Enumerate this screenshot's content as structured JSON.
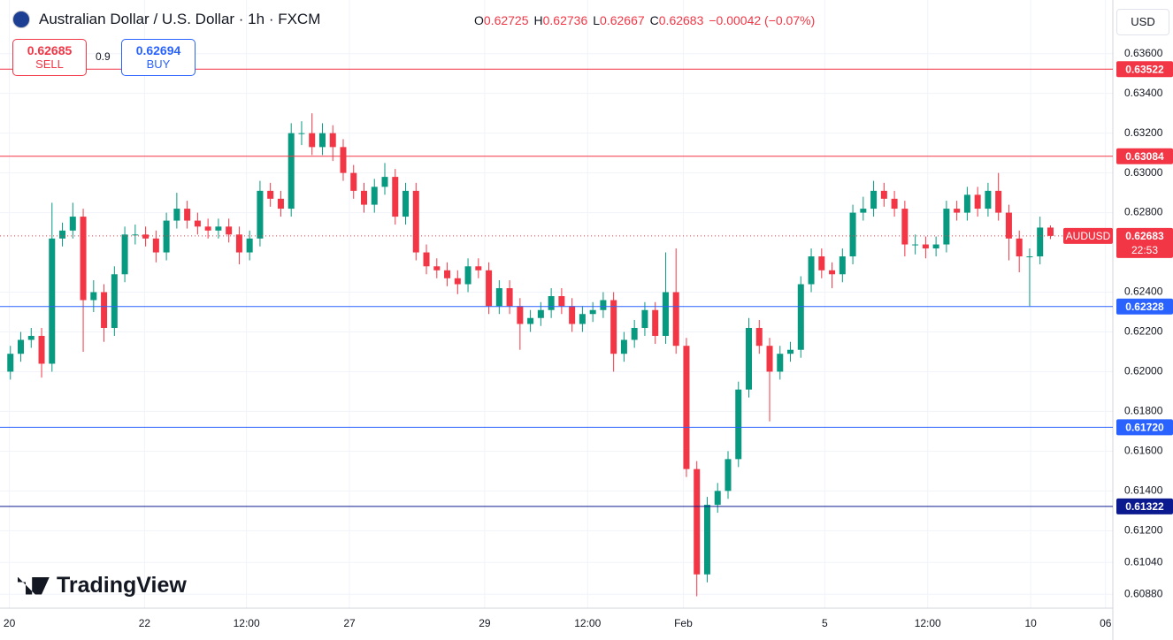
{
  "chart_data": {
    "type": "candlestick",
    "title": "Australian Dollar / U.S. Dollar · 1h · FXCM",
    "ohlc": [
      {
        "key": "O",
        "value": 0.62725
      },
      {
        "key": "H",
        "value": 0.62736
      },
      {
        "key": "L",
        "value": 0.62667
      },
      {
        "key": "C",
        "value": 0.62683
      }
    ],
    "change": "−0.00042 (−0.07%)",
    "sell": {
      "price": "0.62685",
      "label": "SELL"
    },
    "spread": "0.9",
    "buy": {
      "price": "0.62694",
      "label": "BUY"
    },
    "currency": "USD",
    "brand": "TradingView",
    "up_color": "#089981",
    "down_color": "#f23645",
    "grid": true,
    "ylim": [
      0.6081,
      0.6387
    ],
    "xlim": [
      -1,
      106
    ],
    "yticks": [
      {
        "value": 0.636,
        "label": "0.63600"
      },
      {
        "value": 0.634,
        "label": "0.63400"
      },
      {
        "value": 0.632,
        "label": "0.63200"
      },
      {
        "value": 0.63,
        "label": "0.63000"
      },
      {
        "value": 0.628,
        "label": "0.62800"
      },
      {
        "value": 0.624,
        "label": "0.62400"
      },
      {
        "value": 0.622,
        "label": "0.62200"
      },
      {
        "value": 0.62,
        "label": "0.62000"
      },
      {
        "value": 0.618,
        "label": "0.61800"
      },
      {
        "value": 0.616,
        "label": "0.61600"
      },
      {
        "value": 0.614,
        "label": "0.61400"
      },
      {
        "value": 0.612,
        "label": "0.61200"
      },
      {
        "value": 0.6104,
        "label": "0.61040"
      },
      {
        "value": 0.6088,
        "label": "0.60880"
      }
    ],
    "xticks": [
      {
        "value": -0.1,
        "label": "20"
      },
      {
        "value": 12.9,
        "label": "22"
      },
      {
        "value": 22.7,
        "label": "12:00"
      },
      {
        "value": 32.6,
        "label": "27"
      },
      {
        "value": 45.6,
        "label": "29"
      },
      {
        "value": 55.5,
        "label": "12:00"
      },
      {
        "value": 64.7,
        "label": "Feb"
      },
      {
        "value": 78.3,
        "label": "5"
      },
      {
        "value": 88.2,
        "label": "12:00"
      },
      {
        "value": 98.1,
        "label": "10"
      },
      {
        "value": 105.3,
        "label": "06"
      }
    ],
    "levels": [
      {
        "value": 0.63522,
        "label": "0.63522",
        "color": "#f23645"
      },
      {
        "value": 0.63084,
        "label": "0.63084",
        "color": "#f23645"
      },
      {
        "value": 0.62328,
        "label": "0.62328",
        "color": "#2962ff"
      },
      {
        "value": 0.6172,
        "label": "0.61720",
        "color": "#2962ff"
      },
      {
        "value": 0.61322,
        "label": "0.61322",
        "color": "#0c1a8f"
      }
    ],
    "last": {
      "value": 0.62683,
      "label": "0.62683",
      "symbol": "AUDUSD",
      "countdown": "22:53",
      "color": "#f23645"
    },
    "open": [
      0.62,
      0.6209,
      0.6216,
      0.6218,
      0.6204,
      0.6267,
      0.6271,
      0.6278,
      0.6236,
      0.624,
      0.6222,
      0.6249,
      0.6269,
      0.6269,
      0.6267,
      0.626,
      0.6276,
      0.6282,
      0.6276,
      0.6273,
      0.6271,
      0.6273,
      0.6269,
      0.626,
      0.6267,
      0.6291,
      0.6287,
      0.6282,
      0.632,
      0.632,
      0.6313,
      0.632,
      0.6313,
      0.63,
      0.6291,
      0.6284,
      0.6293,
      0.6298,
      0.6278,
      0.6291,
      0.626,
      0.6253,
      0.6251,
      0.6247,
      0.6244,
      0.6253,
      0.6251,
      0.6233,
      0.6242,
      0.6233,
      0.6224,
      0.6227,
      0.6231,
      0.6238,
      0.6233,
      0.6224,
      0.6229,
      0.6231,
      0.6236,
      0.6209,
      0.6216,
      0.6222,
      0.6231,
      0.6218,
      0.624,
      0.6213,
      0.6151,
      0.6098,
      0.6133,
      0.614,
      0.6156,
      0.6191,
      0.6222,
      0.6213,
      0.62,
      0.6209,
      0.6211,
      0.6244,
      0.6258,
      0.6251,
      0.6249,
      0.6258,
      0.628,
      0.6282,
      0.6291,
      0.6287,
      0.6282,
      0.6264,
      0.6264,
      0.6262,
      0.6264,
      0.6282,
      0.628,
      0.6289,
      0.6282,
      0.6291,
      0.628,
      0.6267,
      0.6258,
      0.6258,
      0.62725
    ],
    "high": [
      0.6213,
      0.622,
      0.6222,
      0.6222,
      0.6285,
      0.6275,
      0.6285,
      0.6282,
      0.6246,
      0.6244,
      0.6253,
      0.6273,
      0.6274,
      0.6273,
      0.6271,
      0.628,
      0.629,
      0.6286,
      0.628,
      0.6277,
      0.6277,
      0.6277,
      0.6273,
      0.6271,
      0.6296,
      0.6295,
      0.6291,
      0.6325,
      0.6326,
      0.633,
      0.6325,
      0.6324,
      0.6317,
      0.6304,
      0.6295,
      0.6297,
      0.6305,
      0.6302,
      0.6295,
      0.6295,
      0.6264,
      0.6257,
      0.6255,
      0.6251,
      0.6257,
      0.6257,
      0.6255,
      0.6246,
      0.6246,
      0.6237,
      0.6231,
      0.6235,
      0.6242,
      0.6242,
      0.6237,
      0.6233,
      0.6235,
      0.624,
      0.624,
      0.622,
      0.6226,
      0.6235,
      0.6235,
      0.626,
      0.6262,
      0.6217,
      0.6155,
      0.6137,
      0.6144,
      0.616,
      0.6195,
      0.6227,
      0.6226,
      0.6217,
      0.6213,
      0.6215,
      0.6248,
      0.6262,
      0.6262,
      0.6255,
      0.6262,
      0.6284,
      0.6288,
      0.6296,
      0.6295,
      0.6291,
      0.6286,
      0.6269,
      0.6268,
      0.6268,
      0.6286,
      0.6286,
      0.6293,
      0.6293,
      0.6295,
      0.63,
      0.6284,
      0.6271,
      0.6262,
      0.6278,
      0.62736
    ],
    "low": [
      0.6196,
      0.6205,
      0.6212,
      0.6197,
      0.62,
      0.6263,
      0.6267,
      0.621,
      0.623,
      0.6215,
      0.6218,
      0.6245,
      0.6264,
      0.6263,
      0.6255,
      0.6256,
      0.6272,
      0.6272,
      0.6269,
      0.6267,
      0.6267,
      0.6265,
      0.6254,
      0.6256,
      0.6263,
      0.6283,
      0.6278,
      0.6278,
      0.6314,
      0.6309,
      0.6309,
      0.6306,
      0.6296,
      0.6287,
      0.628,
      0.628,
      0.6289,
      0.6274,
      0.6274,
      0.6256,
      0.6249,
      0.6247,
      0.6243,
      0.6239,
      0.624,
      0.6247,
      0.6229,
      0.6229,
      0.6229,
      0.6211,
      0.622,
      0.6223,
      0.6227,
      0.6229,
      0.622,
      0.622,
      0.6225,
      0.6227,
      0.62,
      0.6205,
      0.6212,
      0.6218,
      0.6214,
      0.6214,
      0.6209,
      0.6147,
      0.6087,
      0.6094,
      0.6129,
      0.6136,
      0.6152,
      0.6187,
      0.6209,
      0.6175,
      0.6196,
      0.6205,
      0.6207,
      0.624,
      0.6247,
      0.6242,
      0.6245,
      0.6254,
      0.6276,
      0.6278,
      0.6283,
      0.6278,
      0.6258,
      0.6259,
      0.6257,
      0.6258,
      0.626,
      0.6276,
      0.6276,
      0.6278,
      0.6278,
      0.6276,
      0.6256,
      0.625,
      0.6233,
      0.6254,
      0.62667
    ],
    "close": [
      0.6209,
      0.6216,
      0.6218,
      0.6204,
      0.6267,
      0.6271,
      0.6278,
      0.6236,
      0.624,
      0.6222,
      0.6249,
      0.6269,
      0.6269,
      0.6267,
      0.626,
      0.6276,
      0.6282,
      0.6276,
      0.6273,
      0.6271,
      0.6273,
      0.6269,
      0.626,
      0.6267,
      0.6291,
      0.6287,
      0.6282,
      0.632,
      0.632,
      0.6313,
      0.632,
      0.6313,
      0.63,
      0.6291,
      0.6284,
      0.6293,
      0.6298,
      0.6278,
      0.6291,
      0.626,
      0.6253,
      0.6251,
      0.6247,
      0.6244,
      0.6253,
      0.6251,
      0.6233,
      0.6242,
      0.6233,
      0.6224,
      0.6227,
      0.6231,
      0.6238,
      0.6233,
      0.6224,
      0.6229,
      0.6231,
      0.6236,
      0.6209,
      0.6216,
      0.6222,
      0.6231,
      0.6218,
      0.624,
      0.6213,
      0.6151,
      0.6098,
      0.6133,
      0.614,
      0.6156,
      0.6191,
      0.6222,
      0.6213,
      0.62,
      0.6209,
      0.6211,
      0.6244,
      0.6258,
      0.6251,
      0.6249,
      0.6258,
      0.628,
      0.6282,
      0.6291,
      0.6287,
      0.6282,
      0.6264,
      0.6264,
      0.6262,
      0.6264,
      0.6282,
      0.628,
      0.6289,
      0.6282,
      0.6291,
      0.628,
      0.6267,
      0.6258,
      0.6258,
      0.62725,
      0.62683
    ]
  }
}
